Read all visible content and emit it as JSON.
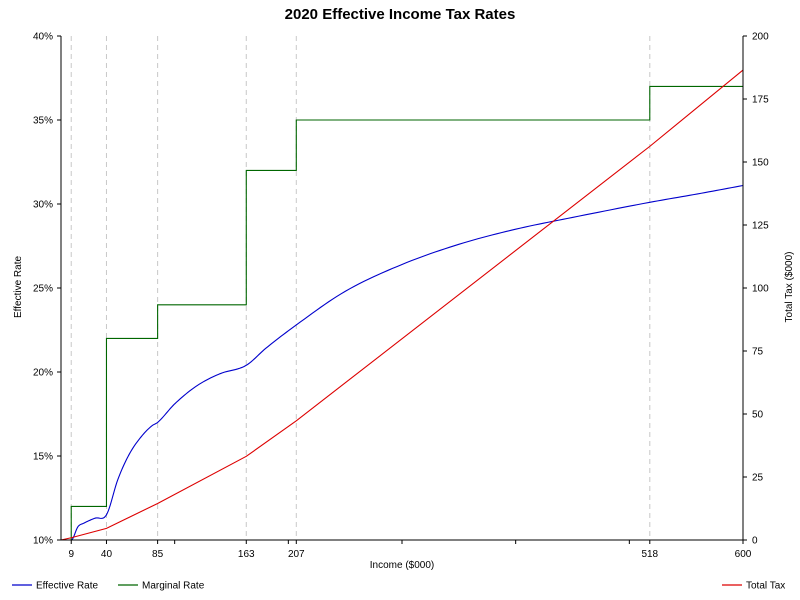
{
  "chart_data": {
    "type": "line",
    "title": "2020 Effective Income Tax Rates",
    "xlabel": "Income ($000)",
    "ylabel_left": "Effective Rate",
    "ylabel_right": "Total Tax ($000)",
    "xlim": [
      0,
      600
    ],
    "ylim_left": [
      0.1,
      0.4
    ],
    "ylim_right": [
      0,
      200
    ],
    "x_ticks": [
      9,
      40,
      85,
      163,
      207,
      518,
      600
    ],
    "x_minor_ticks": [
      100,
      200,
      300,
      400,
      500
    ],
    "y_left_ticks": [
      0.1,
      0.15,
      0.2,
      0.25,
      0.3,
      0.35,
      0.4
    ],
    "y_left_tick_labels": [
      "10%",
      "15%",
      "20%",
      "25%",
      "30%",
      "35%",
      "40%"
    ],
    "y_right_ticks": [
      0,
      25,
      50,
      75,
      100,
      125,
      150,
      175,
      200
    ],
    "bracket_lines": [
      9,
      40,
      85,
      163,
      207,
      518
    ],
    "series": [
      {
        "name": "Effective Rate",
        "axis": "left",
        "color": "#0000cc",
        "x": [
          0,
          9,
          15,
          20,
          30,
          40,
          50,
          60,
          70,
          80,
          85,
          100,
          120,
          140,
          163,
          180,
          207,
          250,
          300,
          350,
          400,
          450,
          518,
          560,
          600
        ],
        "y": [
          0.1,
          0.1,
          0.108,
          0.11,
          0.113,
          0.115,
          0.136,
          0.151,
          0.161,
          0.168,
          0.17,
          0.181,
          0.192,
          0.199,
          0.204,
          0.214,
          0.228,
          0.248,
          0.264,
          0.276,
          0.285,
          0.292,
          0.301,
          0.306,
          0.311
        ]
      },
      {
        "name": "Marginal Rate",
        "axis": "left",
        "color": "#006600",
        "x": [
          0,
          9,
          9,
          40,
          40,
          85,
          85,
          163,
          163,
          207,
          207,
          518,
          518,
          600
        ],
        "y": [
          0.1,
          0.1,
          0.12,
          0.12,
          0.22,
          0.22,
          0.24,
          0.24,
          0.32,
          0.32,
          0.35,
          0.35,
          0.37,
          0.37
        ]
      },
      {
        "name": "Total Tax",
        "axis": "right",
        "color": "#dd0000",
        "x": [
          0,
          9,
          40,
          85,
          163,
          207,
          518,
          600
        ],
        "y": [
          0,
          0.9,
          4.6,
          14.5,
          33.2,
          47.3,
          156.2,
          186.5
        ]
      }
    ],
    "legend": {
      "placement": "bottom",
      "left_entries": [
        "Effective Rate",
        "Marginal Rate"
      ],
      "right_entries": [
        "Total Tax"
      ]
    }
  }
}
